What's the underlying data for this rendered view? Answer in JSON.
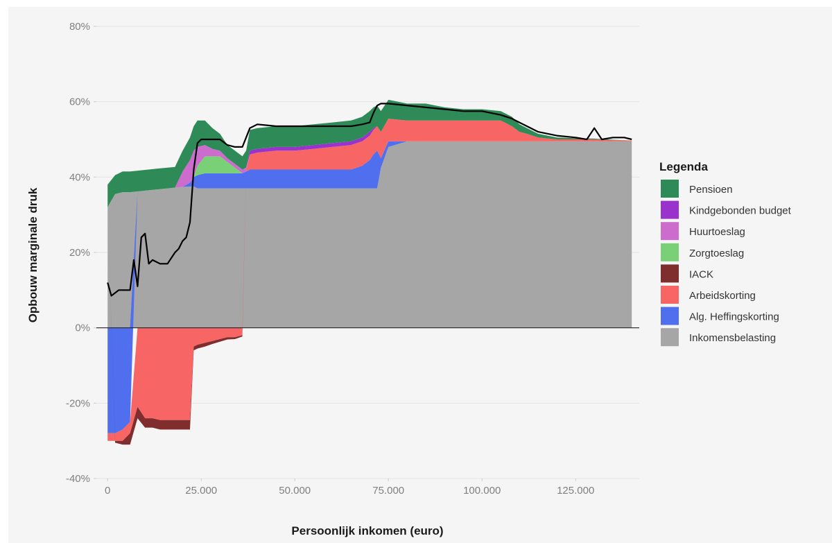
{
  "chart_data": {
    "type": "area",
    "stacked": true,
    "xlabel": "Persoonlijk inkomen (euro)",
    "ylabel": "Opbouw marginale druk",
    "xlim": [
      -3000,
      142000
    ],
    "ylim": [
      -40,
      80
    ],
    "x_ticks": [
      {
        "value": 0,
        "label": "0"
      },
      {
        "value": 25000,
        "label": "25.000"
      },
      {
        "value": 50000,
        "label": "50.000"
      },
      {
        "value": 75000,
        "label": "75.000"
      },
      {
        "value": 100000,
        "label": "100.000"
      },
      {
        "value": 125000,
        "label": "125.000"
      }
    ],
    "y_ticks": [
      {
        "value": -40,
        "label": "-40%"
      },
      {
        "value": -20,
        "label": "-20%"
      },
      {
        "value": 0,
        "label": "0%"
      },
      {
        "value": 20,
        "label": "20%"
      },
      {
        "value": 40,
        "label": "40%"
      },
      {
        "value": 60,
        "label": "60%"
      },
      {
        "value": 80,
        "label": "80%"
      }
    ],
    "grid": true,
    "legend": {
      "title": "Legenda",
      "position": "right"
    },
    "x": [
      0,
      2000,
      4000,
      6000,
      8000,
      10000,
      12000,
      14000,
      16000,
      18000,
      20000,
      22000,
      23000,
      24000,
      26000,
      28000,
      30000,
      32000,
      34000,
      36000,
      37000,
      38000,
      40000,
      45000,
      50000,
      55000,
      60000,
      65000,
      68000,
      70000,
      71000,
      72000,
      73000,
      75000,
      80000,
      85000,
      90000,
      95000,
      100000,
      105000,
      108000,
      110000,
      112000,
      115000,
      120000,
      125000,
      130000,
      135000,
      140000
    ],
    "series": [
      {
        "name": "Inkomensbelasting",
        "color": "#a6a6a6",
        "values": [
          32,
          35.5,
          36,
          36,
          36.2,
          36.4,
          36.6,
          36.8,
          37,
          37.2,
          37.4,
          37.5,
          37.5,
          37,
          37,
          37,
          37,
          37,
          37,
          37,
          37,
          37,
          37,
          37,
          37,
          37,
          37,
          37,
          37,
          37,
          37,
          37,
          42.5,
          48,
          49.5,
          49.5,
          49.5,
          49.5,
          49.5,
          49.5,
          49.5,
          49.5,
          49.5,
          49.5,
          49.5,
          49.5,
          49.5,
          49.5,
          49.5
        ]
      },
      {
        "name": "Alg. Heffingskorting",
        "color": "#4f6fef",
        "values": [
          -28,
          -28,
          -27,
          -25,
          0,
          0,
          0,
          0,
          0,
          0,
          0,
          1,
          2.5,
          3.5,
          4,
          4,
          4,
          4,
          4,
          4,
          4.5,
          5,
          5,
          5,
          5,
          5,
          5,
          5,
          6,
          7.5,
          9,
          10,
          2.5,
          1.5,
          0,
          0,
          0,
          0,
          0,
          0,
          0,
          0,
          0,
          0,
          0,
          0,
          0,
          0,
          0
        ]
      },
      {
        "name": "Arbeidskorting",
        "color": "#f76565",
        "values": [
          -2,
          -2,
          -3,
          -3,
          -21,
          -24,
          -24,
          -24.5,
          -24.5,
          -24.5,
          -24.5,
          -24.5,
          -5,
          -4.5,
          -4,
          -3.5,
          -3,
          -2.5,
          -2.5,
          -2,
          0,
          4,
          4.5,
          5,
          5,
          5.5,
          6,
          6.5,
          6.5,
          6.5,
          6.5,
          6.5,
          7,
          6,
          5.5,
          5.5,
          5.5,
          5.5,
          5.5,
          5.5,
          4,
          2.5,
          2,
          1,
          0.5,
          0.5,
          0.5,
          0.3,
          0.2
        ]
      },
      {
        "name": "IACK",
        "color": "#7f2d2d",
        "values": [
          0,
          -0.5,
          -1,
          -3,
          -3,
          -2.5,
          -2.5,
          -2.5,
          -2.5,
          -2.5,
          -2.5,
          -2.5,
          -1,
          -1,
          -1,
          -0.8,
          -0.7,
          -0.6,
          -0.5,
          -0.3,
          0,
          0,
          0,
          0,
          0,
          0,
          0,
          0,
          0,
          0,
          0,
          0,
          0,
          0,
          0,
          0,
          0,
          0,
          0,
          0,
          0,
          0,
          0,
          0,
          0,
          0,
          0,
          0,
          0
        ]
      },
      {
        "name": "Zorgtoeslag",
        "color": "#79d077",
        "values": [
          0,
          0,
          0,
          0,
          0,
          0,
          0,
          0,
          0,
          0,
          0,
          0,
          0,
          2.5,
          4.5,
          4.5,
          4.5,
          3,
          1.5,
          0,
          0,
          0,
          0,
          0,
          0,
          0,
          0,
          0,
          0,
          0,
          0,
          0,
          0,
          0,
          0,
          0,
          0,
          0,
          0,
          0,
          0,
          0,
          0,
          0,
          0,
          0,
          0,
          0,
          0
        ]
      },
      {
        "name": "Huurtoeslag",
        "color": "#cc6ccc",
        "values": [
          0,
          0,
          0,
          0,
          0,
          0,
          0,
          0,
          0,
          0,
          4,
          6,
          7,
          5,
          3,
          2,
          1.5,
          1,
          1,
          1,
          1,
          0,
          0,
          0,
          0,
          0,
          0,
          0,
          0,
          0,
          0,
          0,
          0,
          0,
          0,
          0,
          0,
          0,
          0,
          0,
          0,
          0,
          0,
          0,
          0,
          0,
          0,
          0,
          0
        ]
      },
      {
        "name": "Kindgebonden budget",
        "color": "#9933cc",
        "values": [
          0,
          0,
          0,
          0,
          0,
          0,
          0,
          0,
          0,
          0,
          0,
          0,
          0,
          0,
          0,
          0,
          0,
          0,
          0,
          0,
          0,
          1,
          1,
          1,
          1,
          1,
          1,
          1,
          1,
          1,
          0.5,
          0,
          0,
          0,
          0,
          0,
          0,
          0,
          0,
          0,
          0,
          0,
          0,
          0,
          0,
          0,
          0,
          0,
          0
        ]
      },
      {
        "name": "Pensioen",
        "color": "#2e8b57",
        "values": [
          6,
          5,
          5.5,
          5.5,
          5.5,
          5.5,
          5.5,
          5.5,
          5.5,
          5.5,
          5.5,
          6,
          6.5,
          7,
          6.5,
          5.5,
          4.5,
          3.5,
          3.5,
          3.5,
          4.5,
          5.5,
          5.5,
          5.5,
          5.5,
          5.5,
          5.5,
          5.5,
          5.5,
          5.5,
          5.5,
          5.5,
          5.5,
          5,
          4.5,
          4.5,
          3.5,
          3,
          3,
          2.5,
          2.5,
          2,
          1.5,
          1,
          0.5,
          0.3,
          0.2,
          0.1,
          0
        ]
      }
    ],
    "line": {
      "color": "#000000",
      "x": [
        0,
        1000,
        3000,
        6000,
        7000,
        8000,
        9000,
        10000,
        11000,
        12000,
        14000,
        16000,
        18000,
        19000,
        20000,
        21000,
        22000,
        23000,
        24000,
        25000,
        26000,
        28000,
        30000,
        32000,
        34000,
        36000,
        37000,
        38000,
        40000,
        45000,
        50000,
        55000,
        60000,
        65000,
        68000,
        70000,
        71000,
        72000,
        73000,
        75000,
        80000,
        85000,
        90000,
        95000,
        100000,
        105000,
        108000,
        110000,
        112000,
        115000,
        120000,
        125000,
        128000,
        130000,
        132000,
        135000,
        138000,
        140000
      ],
      "y": [
        12,
        8.5,
        10,
        10,
        18,
        11,
        24,
        25,
        17,
        18,
        17,
        17,
        20,
        21,
        23,
        24,
        28,
        42,
        49,
        50,
        50,
        50,
        50,
        48.5,
        48,
        48,
        50.5,
        53,
        54,
        53.5,
        53.5,
        53.5,
        53.5,
        53.5,
        54,
        54.5,
        57,
        59,
        59.5,
        59.5,
        59,
        58.5,
        58,
        57.5,
        57.5,
        56.5,
        55.5,
        54.5,
        53.5,
        52,
        51,
        50.5,
        50,
        53,
        50,
        50.5,
        50.5,
        50
      ]
    }
  }
}
